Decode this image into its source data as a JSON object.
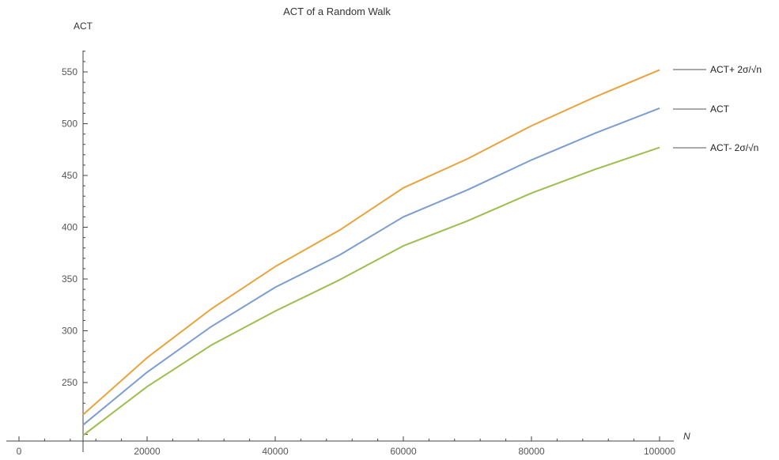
{
  "chart_data": {
    "type": "line",
    "title": "ACT of a Random Walk",
    "xlabel": "N",
    "ylabel": "ACT",
    "xlim": [
      -3000,
      102000
    ],
    "ylim": [
      195,
      580
    ],
    "x_tick_values": [
      0,
      20000,
      40000,
      60000,
      80000,
      100000
    ],
    "x_tick_labels": [
      "0",
      "20000",
      "40000",
      "60000",
      "80000",
      "100000"
    ],
    "y_tick_values": [
      250,
      300,
      350,
      400,
      450,
      500,
      550
    ],
    "y_tick_labels": [
      "250",
      "300",
      "350",
      "400",
      "450",
      "500",
      "550"
    ],
    "x": [
      10000,
      20000,
      30000,
      40000,
      50000,
      60000,
      70000,
      80000,
      90000,
      100000
    ],
    "series": [
      {
        "legend_text": "ACT+ 2σ/√n",
        "color": "#E9A33C",
        "values": [
          219,
          274,
          321,
          362,
          397,
          438,
          466,
          498,
          526,
          552
        ]
      },
      {
        "legend_text": "ACT",
        "color": "#7B9DD1",
        "values": [
          209,
          260,
          304,
          342,
          373,
          410,
          436,
          465,
          491,
          515
        ]
      },
      {
        "legend_text": "ACT- 2σ/√n",
        "color": "#9DBE4E",
        "values": [
          199,
          246,
          286,
          319,
          349,
          382,
          406,
          433,
          456,
          477
        ]
      }
    ],
    "grid": false,
    "legend_position": "right"
  }
}
